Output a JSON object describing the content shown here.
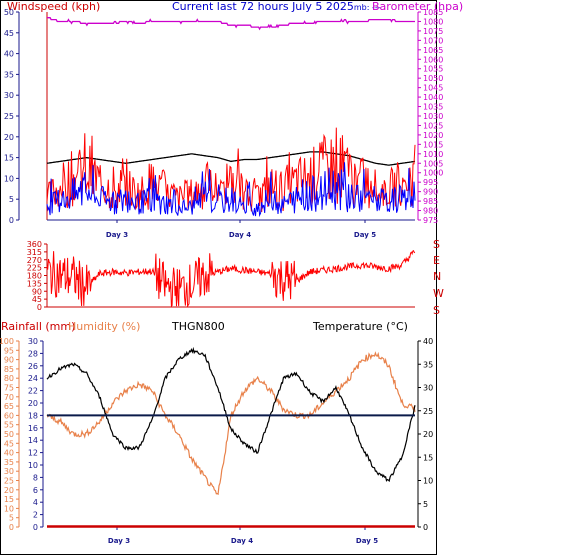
{
  "top_panel": {
    "left_label": "Windspeed (kph)",
    "center_label": "Current last 72 hours July 5 2025",
    "center_suffix": "mb: ---",
    "right_label": "Barometer (hpa)",
    "colors": {
      "left_label": "#cc0000",
      "center_label": "#0000cc",
      "right_label": "#cc00cc"
    }
  },
  "middle_panel": {
    "compass_labels": [
      "S",
      "E",
      "N",
      "W",
      "S"
    ]
  },
  "bottom_panel": {
    "rain_label": "Rainfall (mm)",
    "humidity_label": "Humidity (%)",
    "station_label": "THGN800",
    "temp_label": "Temperature (°C)",
    "colors": {
      "rain": "#cc0000",
      "humidity": "#e8814a",
      "temp": "#000000"
    }
  },
  "chart_data": [
    {
      "type": "line",
      "title": "Current last 72 hours July 5 2025",
      "x_labels": [
        "Day 3",
        "Day 4",
        "Day 5"
      ],
      "left_axis": {
        "label": "Windspeed (kph)",
        "range": [
          0,
          50
        ],
        "ticks": [
          0,
          5,
          10,
          15,
          20,
          25,
          30,
          35,
          40,
          45,
          50
        ]
      },
      "right_axis": {
        "label": "Barometer (hpa)",
        "range": [
          975,
          1085
        ],
        "ticks": [
          975,
          980,
          985,
          990,
          995,
          1000,
          1005,
          1010,
          1015,
          1020,
          1025,
          1030,
          1035,
          1040,
          1045,
          1050,
          1055,
          1060,
          1065,
          1070,
          1075,
          1080,
          1085
        ]
      },
      "series": [
        {
          "color": "#cc00cc",
          "axis": "right",
          "values": [
            1082,
            1080,
            1080,
            1079,
            1079,
            1079,
            1080,
            1079,
            1080,
            1080,
            1080,
            1080,
            1080,
            1080,
            1078,
            1078,
            1077,
            1077,
            1078,
            1079,
            1079,
            1080,
            1080,
            1080,
            1080,
            1081,
            1081,
            1080,
            1080
          ]
        },
        {
          "color": "#000000",
          "axis": "right",
          "values": [
            1005,
            1006,
            1007,
            1008,
            1007,
            1006,
            1005,
            1006,
            1007,
            1008,
            1009,
            1010,
            1009,
            1008,
            1006,
            1007,
            1007,
            1008,
            1009,
            1010,
            1011,
            1011,
            1010,
            1009,
            1007,
            1005,
            1004,
            1005,
            1006
          ]
        },
        {
          "color": "#ff0000",
          "axis": "left",
          "values": [
            5,
            8,
            10,
            12,
            9,
            7,
            8,
            6,
            9,
            7,
            5,
            6,
            8,
            7,
            9,
            6,
            5,
            8,
            7,
            9,
            10,
            12,
            13,
            11,
            9,
            8,
            7,
            9,
            11
          ]
        },
        {
          "color": "#0000ff",
          "axis": "left",
          "values": [
            3,
            5,
            6,
            7,
            5,
            4,
            5,
            4,
            5,
            4,
            3,
            3,
            5,
            4,
            5,
            3,
            3,
            5,
            4,
            5,
            6,
            7,
            8,
            6,
            5,
            5,
            4,
            5,
            6
          ]
        }
      ]
    },
    {
      "type": "line",
      "left_axis": {
        "range": [
          0,
          360
        ],
        "ticks": [
          0,
          45,
          90,
          135,
          180,
          225,
          270,
          315,
          360
        ]
      },
      "right_axis": {
        "labels": [
          "S",
          "E",
          "N",
          "W",
          "S"
        ]
      },
      "series": [
        {
          "color": "#ff0000",
          "values": [
            200,
            180,
            170,
            110,
            190,
            200,
            195,
            200,
            205,
            120,
            100,
            130,
            180,
            200,
            220,
            210,
            200,
            190,
            160,
            150,
            200,
            210,
            220,
            230,
            240,
            230,
            220,
            240,
            320
          ]
        }
      ]
    },
    {
      "type": "line",
      "x_labels": [
        "Day 3",
        "Day 4",
        "Day 5"
      ],
      "left_axis": {
        "label": "Rainfall (mm)",
        "range": [
          0,
          100
        ],
        "ticks": [
          0,
          5,
          10,
          15,
          20,
          25,
          30,
          35,
          40,
          45,
          50,
          55,
          60,
          65,
          70,
          75,
          80,
          85,
          90,
          95,
          100
        ]
      },
      "left_axis2": {
        "label": "Humidity (%)",
        "range": [
          0,
          30
        ],
        "ticks": [
          0,
          2,
          4,
          6,
          8,
          10,
          12,
          14,
          16,
          18,
          20,
          22,
          24,
          26,
          28,
          30
        ]
      },
      "right_axis": {
        "label": "Temperature (°C)",
        "range": [
          0,
          40
        ],
        "ticks": [
          0,
          5,
          10,
          15,
          20,
          25,
          30,
          35,
          40
        ]
      },
      "series": [
        {
          "name": "Humidity (%)",
          "color": "#e8814a",
          "axis": "left2",
          "values": [
            18,
            17,
            15,
            15,
            17,
            20,
            22,
            23,
            22,
            18,
            15,
            11,
            8,
            5,
            18,
            22,
            24,
            22,
            19,
            18,
            18,
            20,
            22,
            24,
            27,
            28,
            26,
            20,
            19
          ]
        },
        {
          "name": "Temperature (°C)",
          "color": "#000000",
          "axis": "right",
          "values": [
            32,
            34,
            35,
            33,
            28,
            20,
            17,
            17,
            23,
            32,
            36,
            38,
            37,
            30,
            21,
            18,
            16,
            24,
            32,
            33,
            29,
            27,
            30,
            24,
            17,
            12,
            10,
            15,
            26
          ]
        },
        {
          "color": "#0a1a4a",
          "axis": "left2",
          "values": [
            18,
            18,
            18,
            18,
            18,
            18,
            18,
            18,
            18,
            18,
            18,
            18,
            18,
            18,
            18,
            18,
            18,
            18,
            18,
            18,
            18,
            18,
            18,
            18,
            18,
            18,
            18,
            18,
            18
          ]
        },
        {
          "name": "Rainfall (mm)",
          "color": "#cc0000",
          "axis": "left",
          "values": [
            0,
            0,
            0,
            0,
            0,
            0,
            0,
            0,
            0,
            0,
            0,
            0,
            0,
            0,
            0,
            0,
            0,
            0,
            0,
            0,
            0,
            0,
            0,
            0,
            0,
            0,
            0,
            0,
            0
          ]
        }
      ]
    }
  ]
}
